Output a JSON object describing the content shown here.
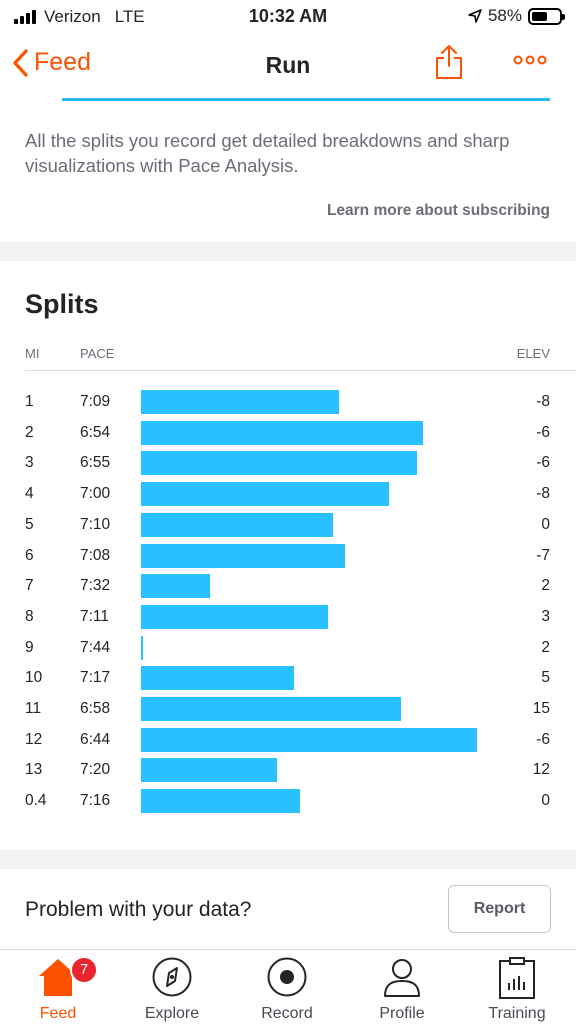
{
  "status_bar": {
    "carrier": "Verizon",
    "network": "LTE",
    "time": "10:32 AM",
    "battery": "58%",
    "battery_level": 0.58
  },
  "nav": {
    "back_label": "Feed",
    "title": "Run"
  },
  "promo": {
    "text": "All the splits you record get detailed breakdowns and sharp visualizations with Pace Analysis.",
    "learn_more": "Learn more about subscribing"
  },
  "splits": {
    "title": "Splits",
    "headers": {
      "mi": "MI",
      "pace": "PACE",
      "elev": "ELEV"
    },
    "rows": [
      {
        "mi": "1",
        "pace": "7:09",
        "elev": "-8"
      },
      {
        "mi": "2",
        "pace": "6:54",
        "elev": "-6"
      },
      {
        "mi": "3",
        "pace": "6:55",
        "elev": "-6"
      },
      {
        "mi": "4",
        "pace": "7:00",
        "elev": "-8"
      },
      {
        "mi": "5",
        "pace": "7:10",
        "elev": "0"
      },
      {
        "mi": "6",
        "pace": "7:08",
        "elev": "-7"
      },
      {
        "mi": "7",
        "pace": "7:32",
        "elev": "2"
      },
      {
        "mi": "8",
        "pace": "7:11",
        "elev": "3"
      },
      {
        "mi": "9",
        "pace": "7:44",
        "elev": "2"
      },
      {
        "mi": "10",
        "pace": "7:17",
        "elev": "5"
      },
      {
        "mi": "11",
        "pace": "6:58",
        "elev": "15"
      },
      {
        "mi": "12",
        "pace": "6:44",
        "elev": "-6"
      },
      {
        "mi": "13",
        "pace": "7:20",
        "elev": "12"
      },
      {
        "mi": "0.4",
        "pace": "7:16",
        "elev": "0"
      }
    ],
    "bar_color": "#29c0ff"
  },
  "problem": {
    "question": "Problem with your data?",
    "report_label": "Report"
  },
  "tabs": [
    {
      "label": "Feed",
      "icon": "home-icon",
      "active": true,
      "badge": "7"
    },
    {
      "label": "Explore",
      "icon": "compass-icon",
      "active": false
    },
    {
      "label": "Record",
      "icon": "record-icon",
      "active": false
    },
    {
      "label": "Profile",
      "icon": "person-icon",
      "active": false
    },
    {
      "label": "Training",
      "icon": "clipboard-chart-icon",
      "active": false
    }
  ],
  "colors": {
    "accent": "#fc5200",
    "badge": "#e8242f"
  }
}
